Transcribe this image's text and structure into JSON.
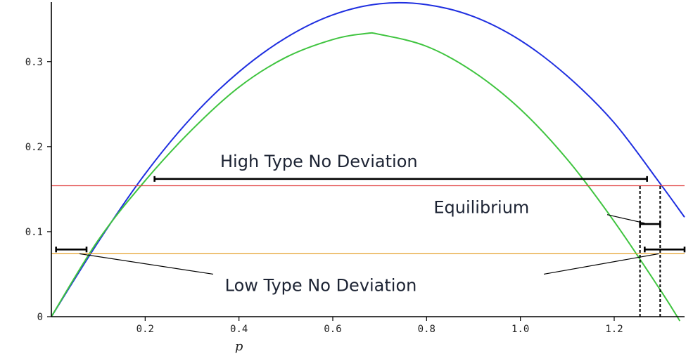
{
  "chart_data": {
    "type": "line",
    "title": "",
    "xlabel": "p",
    "ylabel": "",
    "xlim": [
      0,
      1.35
    ],
    "ylim": [
      0,
      0.37
    ],
    "x_ticks": [
      {
        "value": 0.2,
        "label": "0.2"
      },
      {
        "value": 0.4,
        "label": "0.4"
      },
      {
        "value": 0.6,
        "label": "0.6"
      },
      {
        "value": 0.8,
        "label": "0.8"
      },
      {
        "value": 1.0,
        "label": "1.0"
      },
      {
        "value": 1.2,
        "label": "1.2"
      }
    ],
    "y_ticks": [
      {
        "value": 0,
        "label": "0"
      },
      {
        "value": 0.1,
        "label": "0.1"
      },
      {
        "value": 0.2,
        "label": "0.2"
      },
      {
        "value": 0.3,
        "label": "0.3"
      }
    ],
    "grid": false,
    "series": [
      {
        "color": "#1f2fe0",
        "x": [
          0,
          0.1,
          0.2,
          0.3,
          0.4,
          0.5,
          0.6,
          0.7,
          0.8,
          0.9,
          1.0,
          1.1,
          1.2,
          1.3,
          1.35
        ],
        "y": [
          0,
          0.088,
          0.168,
          0.235,
          0.288,
          0.328,
          0.355,
          0.368,
          0.367,
          0.353,
          0.325,
          0.283,
          0.228,
          0.155,
          0.117
        ]
      },
      {
        "color": "#3fc43f",
        "x": [
          0,
          0.1,
          0.2,
          0.3,
          0.4,
          0.5,
          0.6,
          0.67,
          0.7,
          0.8,
          0.9,
          1.0,
          1.1,
          1.2,
          1.3,
          1.34
        ],
        "y": [
          0,
          0.09,
          0.16,
          0.22,
          0.27,
          0.305,
          0.326,
          0.333,
          0.332,
          0.318,
          0.288,
          0.244,
          0.185,
          0.112,
          0.03,
          -0.005
        ]
      },
      {
        "color": "#e04040",
        "x": [
          0,
          1.35
        ],
        "y": [
          0.154,
          0.154
        ]
      },
      {
        "color": "#e5a02a",
        "x": [
          0,
          1.35
        ],
        "y": [
          0.074,
          0.074
        ]
      }
    ],
    "intervals": [
      {
        "id": "high",
        "x": [
          0.22,
          1.27
        ],
        "y": 0.162
      },
      {
        "id": "low-left",
        "x": [
          0.01,
          0.075
        ],
        "y": 0.079
      },
      {
        "id": "low-right",
        "x": [
          1.265,
          1.35
        ],
        "y": 0.079
      },
      {
        "id": "equilibrium",
        "x": [
          1.255,
          1.298
        ],
        "y": 0.109
      }
    ],
    "dashed_lines": [
      {
        "x": 1.255,
        "y": [
          0,
          0.154
        ]
      },
      {
        "x": 1.298,
        "y": [
          0,
          0.154
        ]
      }
    ],
    "annotations": [
      {
        "text": "High Type No Deviation",
        "x": 0.36,
        "y": 0.176,
        "pointer_from": [
          1.035,
          0.169
        ],
        "pointer_to": [
          1.035,
          0.169
        ]
      },
      {
        "text": "Equilibrium",
        "x": 0.815,
        "y": 0.122,
        "pointer_from": [
          1.185,
          0.12
        ],
        "pointer_to": [
          1.265,
          0.11
        ]
      },
      {
        "text": "Low Type No Deviation",
        "x": 0.37,
        "y": 0.03,
        "pointer_from": [
          0.345,
          0.05
        ],
        "pointer_to": [
          0.06,
          0.074
        ],
        "pointer2_from": [
          1.05,
          0.05
        ],
        "pointer2_to": [
          1.295,
          0.074
        ]
      }
    ]
  }
}
